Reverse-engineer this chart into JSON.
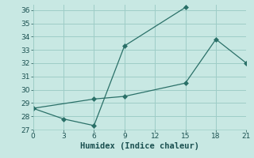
{
  "line1_x": [
    0,
    3,
    6,
    9,
    15
  ],
  "line1_y": [
    28.6,
    27.8,
    27.3,
    33.3,
    36.2
  ],
  "line2_x": [
    0,
    6,
    9,
    15,
    18,
    21
  ],
  "line2_y": [
    28.6,
    29.3,
    29.5,
    30.5,
    33.8,
    32.0
  ],
  "color": "#2a7068",
  "bg_color": "#c8e8e3",
  "grid_color": "#9ecdc7",
  "xlabel": "Humidex (Indice chaleur)",
  "xlim": [
    0,
    21
  ],
  "ylim": [
    27,
    36.4
  ],
  "xticks": [
    0,
    3,
    6,
    9,
    12,
    15,
    18,
    21
  ],
  "yticks": [
    27,
    28,
    29,
    30,
    31,
    32,
    33,
    34,
    35,
    36
  ],
  "xlabel_fontsize": 7.5,
  "tick_fontsize": 6.5,
  "label_color": "#1a5050"
}
